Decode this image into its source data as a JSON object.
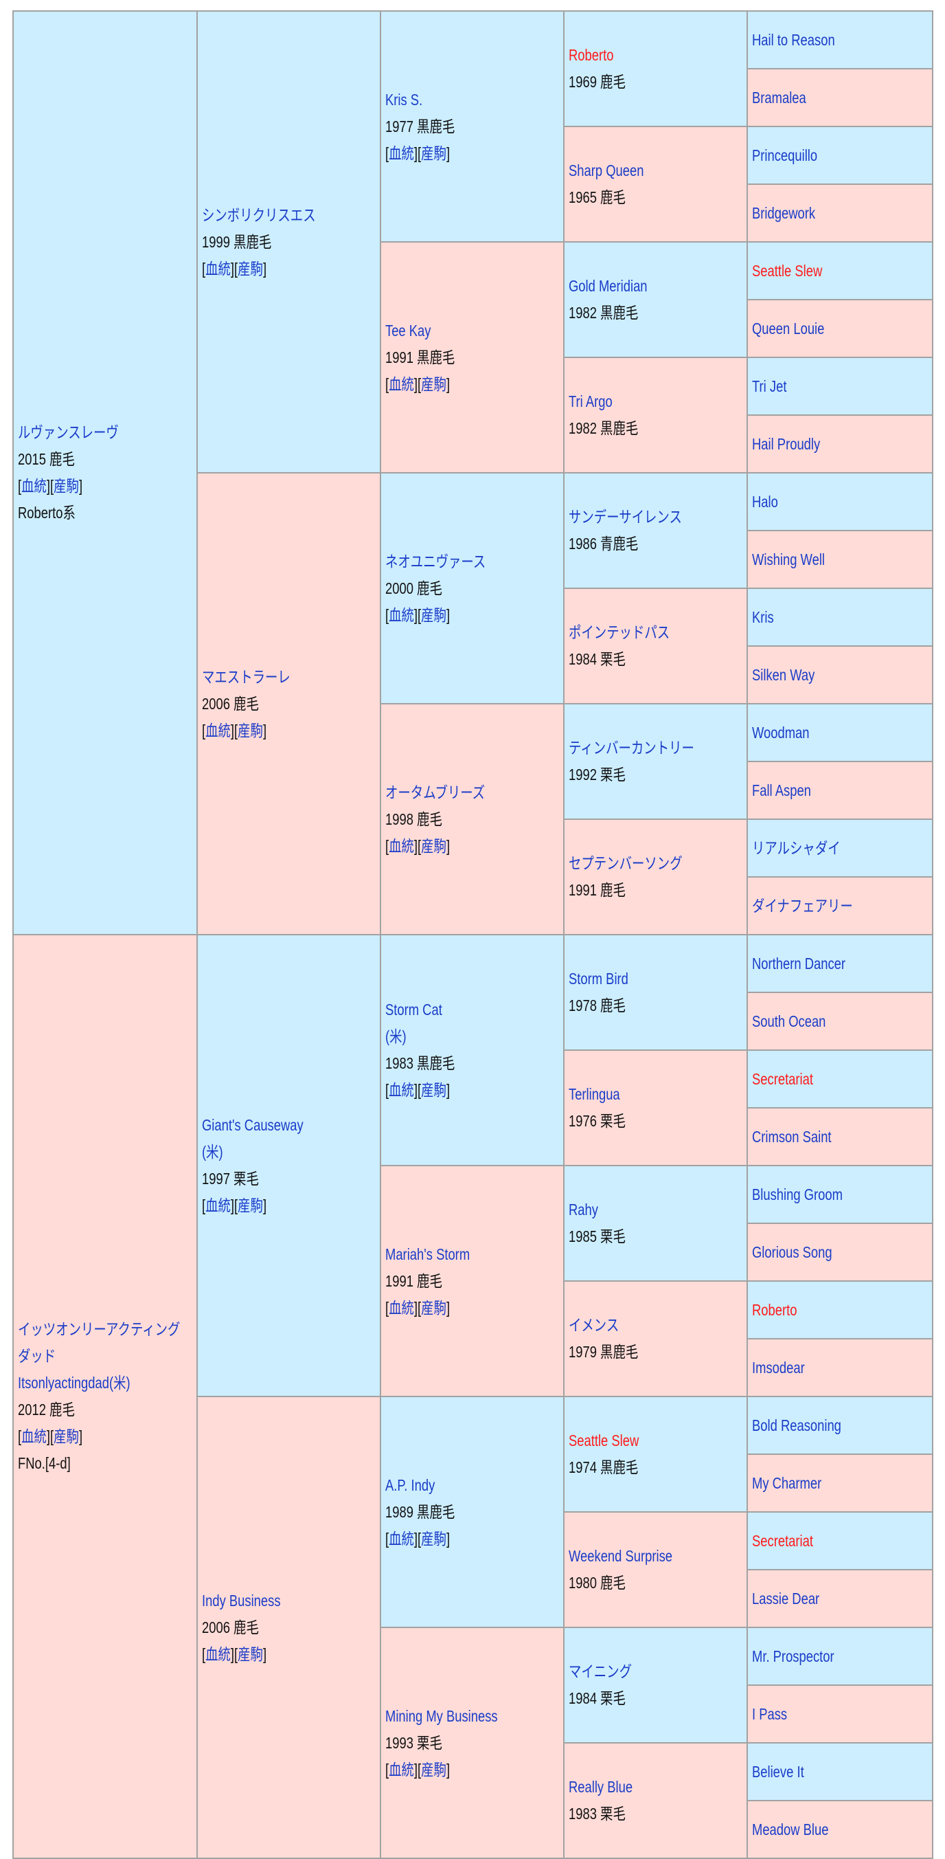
{
  "link_labels": {
    "pedigree": "血統",
    "progeny": "産駒"
  },
  "colors": {
    "sire_bg": "#cceeff",
    "dam_bg": "#ffdcd8",
    "link": "#1a3cc8",
    "highlight": "#ff1a1a"
  },
  "gen1": [
    {
      "name": "ルヴァンスレーヴ",
      "info": "2015 鹿毛",
      "links": true,
      "note": "Roberto系"
    },
    {
      "name": "イッツオンリーアクティングダッド",
      "extra": "Itsonlyactingdad(米)",
      "info": "2012 鹿毛",
      "links": true,
      "note": "FNo.[4-d]"
    }
  ],
  "gen2": [
    {
      "name": "シンボリクリスエス",
      "info": "1999 黒鹿毛",
      "links": true
    },
    {
      "name": "マエストラーレ",
      "info": "2006 鹿毛",
      "links": true
    },
    {
      "name": "Giant's Causeway",
      "extra": "(米)",
      "info": "1997 栗毛",
      "links": true
    },
    {
      "name": "Indy Business",
      "info": "2006 鹿毛",
      "links": true
    }
  ],
  "gen3": [
    {
      "name": "Kris S.",
      "info": "1977 黒鹿毛",
      "links": true
    },
    {
      "name": "Tee Kay",
      "info": "1991 黒鹿毛",
      "links": true
    },
    {
      "name": "ネオユニヴァース",
      "info": "2000 鹿毛",
      "links": true
    },
    {
      "name": "オータムブリーズ",
      "info": "1998 鹿毛",
      "links": true
    },
    {
      "name": "Storm Cat",
      "extra": "(米)",
      "info": "1983 黒鹿毛",
      "links": true
    },
    {
      "name": "Mariah's Storm",
      "info": "1991 鹿毛",
      "links": true
    },
    {
      "name": "A.P. Indy",
      "info": "1989 黒鹿毛",
      "links": true
    },
    {
      "name": "Mining My Business",
      "info": "1993 栗毛",
      "links": true
    }
  ],
  "gen4": [
    {
      "name": "Roberto",
      "red": true,
      "info": "1969 鹿毛"
    },
    {
      "name": "Sharp Queen",
      "info": "1965 鹿毛"
    },
    {
      "name": "Gold Meridian",
      "info": "1982 黒鹿毛"
    },
    {
      "name": "Tri Argo",
      "info": "1982 黒鹿毛"
    },
    {
      "name": "サンデーサイレンス",
      "info": "1986 青鹿毛"
    },
    {
      "name": "ポインテッドパス",
      "info": "1984 栗毛"
    },
    {
      "name": "ティンバーカントリー",
      "info": "1992 栗毛"
    },
    {
      "name": "セプテンバーソング",
      "info": "1991 鹿毛"
    },
    {
      "name": "Storm Bird",
      "info": "1978 鹿毛"
    },
    {
      "name": "Terlingua",
      "info": "1976 栗毛"
    },
    {
      "name": "Rahy",
      "info": "1985 栗毛"
    },
    {
      "name": "イメンス",
      "info": "1979 黒鹿毛"
    },
    {
      "name": "Seattle Slew",
      "red": true,
      "info": "1974 黒鹿毛"
    },
    {
      "name": "Weekend Surprise",
      "info": "1980 鹿毛"
    },
    {
      "name": "マイニング",
      "info": "1984 栗毛"
    },
    {
      "name": "Really Blue",
      "info": "1983 栗毛"
    }
  ],
  "gen5": [
    {
      "name": "Hail to Reason"
    },
    {
      "name": "Bramalea"
    },
    {
      "name": "Princequillo"
    },
    {
      "name": "Bridgework"
    },
    {
      "name": "Seattle Slew",
      "red": true
    },
    {
      "name": "Queen Louie"
    },
    {
      "name": "Tri Jet"
    },
    {
      "name": "Hail Proudly"
    },
    {
      "name": "Halo"
    },
    {
      "name": "Wishing Well"
    },
    {
      "name": "Kris"
    },
    {
      "name": "Silken Way"
    },
    {
      "name": "Woodman"
    },
    {
      "name": "Fall Aspen"
    },
    {
      "name": "リアルシャダイ"
    },
    {
      "name": "ダイナフェアリー"
    },
    {
      "name": "Northern Dancer"
    },
    {
      "name": "South Ocean"
    },
    {
      "name": "Secretariat",
      "red": true
    },
    {
      "name": "Crimson Saint"
    },
    {
      "name": "Blushing Groom"
    },
    {
      "name": "Glorious Song"
    },
    {
      "name": "Roberto",
      "red": true
    },
    {
      "name": "Imsodear"
    },
    {
      "name": "Bold Reasoning"
    },
    {
      "name": "My Charmer"
    },
    {
      "name": "Secretariat",
      "red": true
    },
    {
      "name": "Lassie Dear"
    },
    {
      "name": "Mr. Prospector"
    },
    {
      "name": "I Pass"
    },
    {
      "name": "Believe It"
    },
    {
      "name": "Meadow Blue"
    }
  ]
}
